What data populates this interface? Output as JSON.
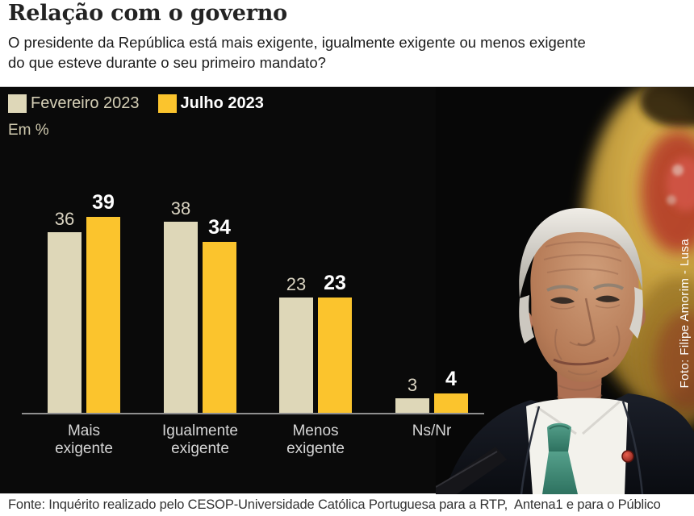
{
  "header": {
    "title": "Relação com o governo",
    "subtitle_line1": "O presidente da República está mais exigente, igualmente exigente ou menos exigente",
    "subtitle_line2": "do que esteve durante o seu primeiro mandato?"
  },
  "chart_data": {
    "type": "bar",
    "title": "Relação com o governo",
    "unit_label": "Em %",
    "legend_position": "top-left",
    "grid": false,
    "ylim": [
      0,
      45
    ],
    "axis_color": "#8f8f8f",
    "background_color": "#0a0a0a",
    "categories": [
      "Mais exigente",
      "Igualmente exigente",
      "Menos exigente",
      "Ns/Nr"
    ],
    "category_lines": [
      [
        "Mais",
        "exigente"
      ],
      [
        "Igualmente",
        "exigente"
      ],
      [
        "Menos",
        "exigente"
      ],
      [
        "Ns/Nr"
      ]
    ],
    "series": [
      {
        "name": "Fevereiro 2023",
        "color": "#ded7b8",
        "label_color": "#d9d3c1",
        "bold_labels": false,
        "values": [
          36,
          38,
          23,
          3
        ]
      },
      {
        "name": "Julho 2023",
        "color": "#fbc42d",
        "label_color": "#ffffff",
        "bold_labels": true,
        "values": [
          39,
          34,
          23,
          4
        ]
      }
    ]
  },
  "photo": {
    "credit": "Foto: Filipe Amorim - Lusa"
  },
  "footer": {
    "source": "Fonte: Inquérito realizado pelo CESOP-Universidade Católica Portuguesa para a RTP,  Antena1 e para o Público"
  }
}
